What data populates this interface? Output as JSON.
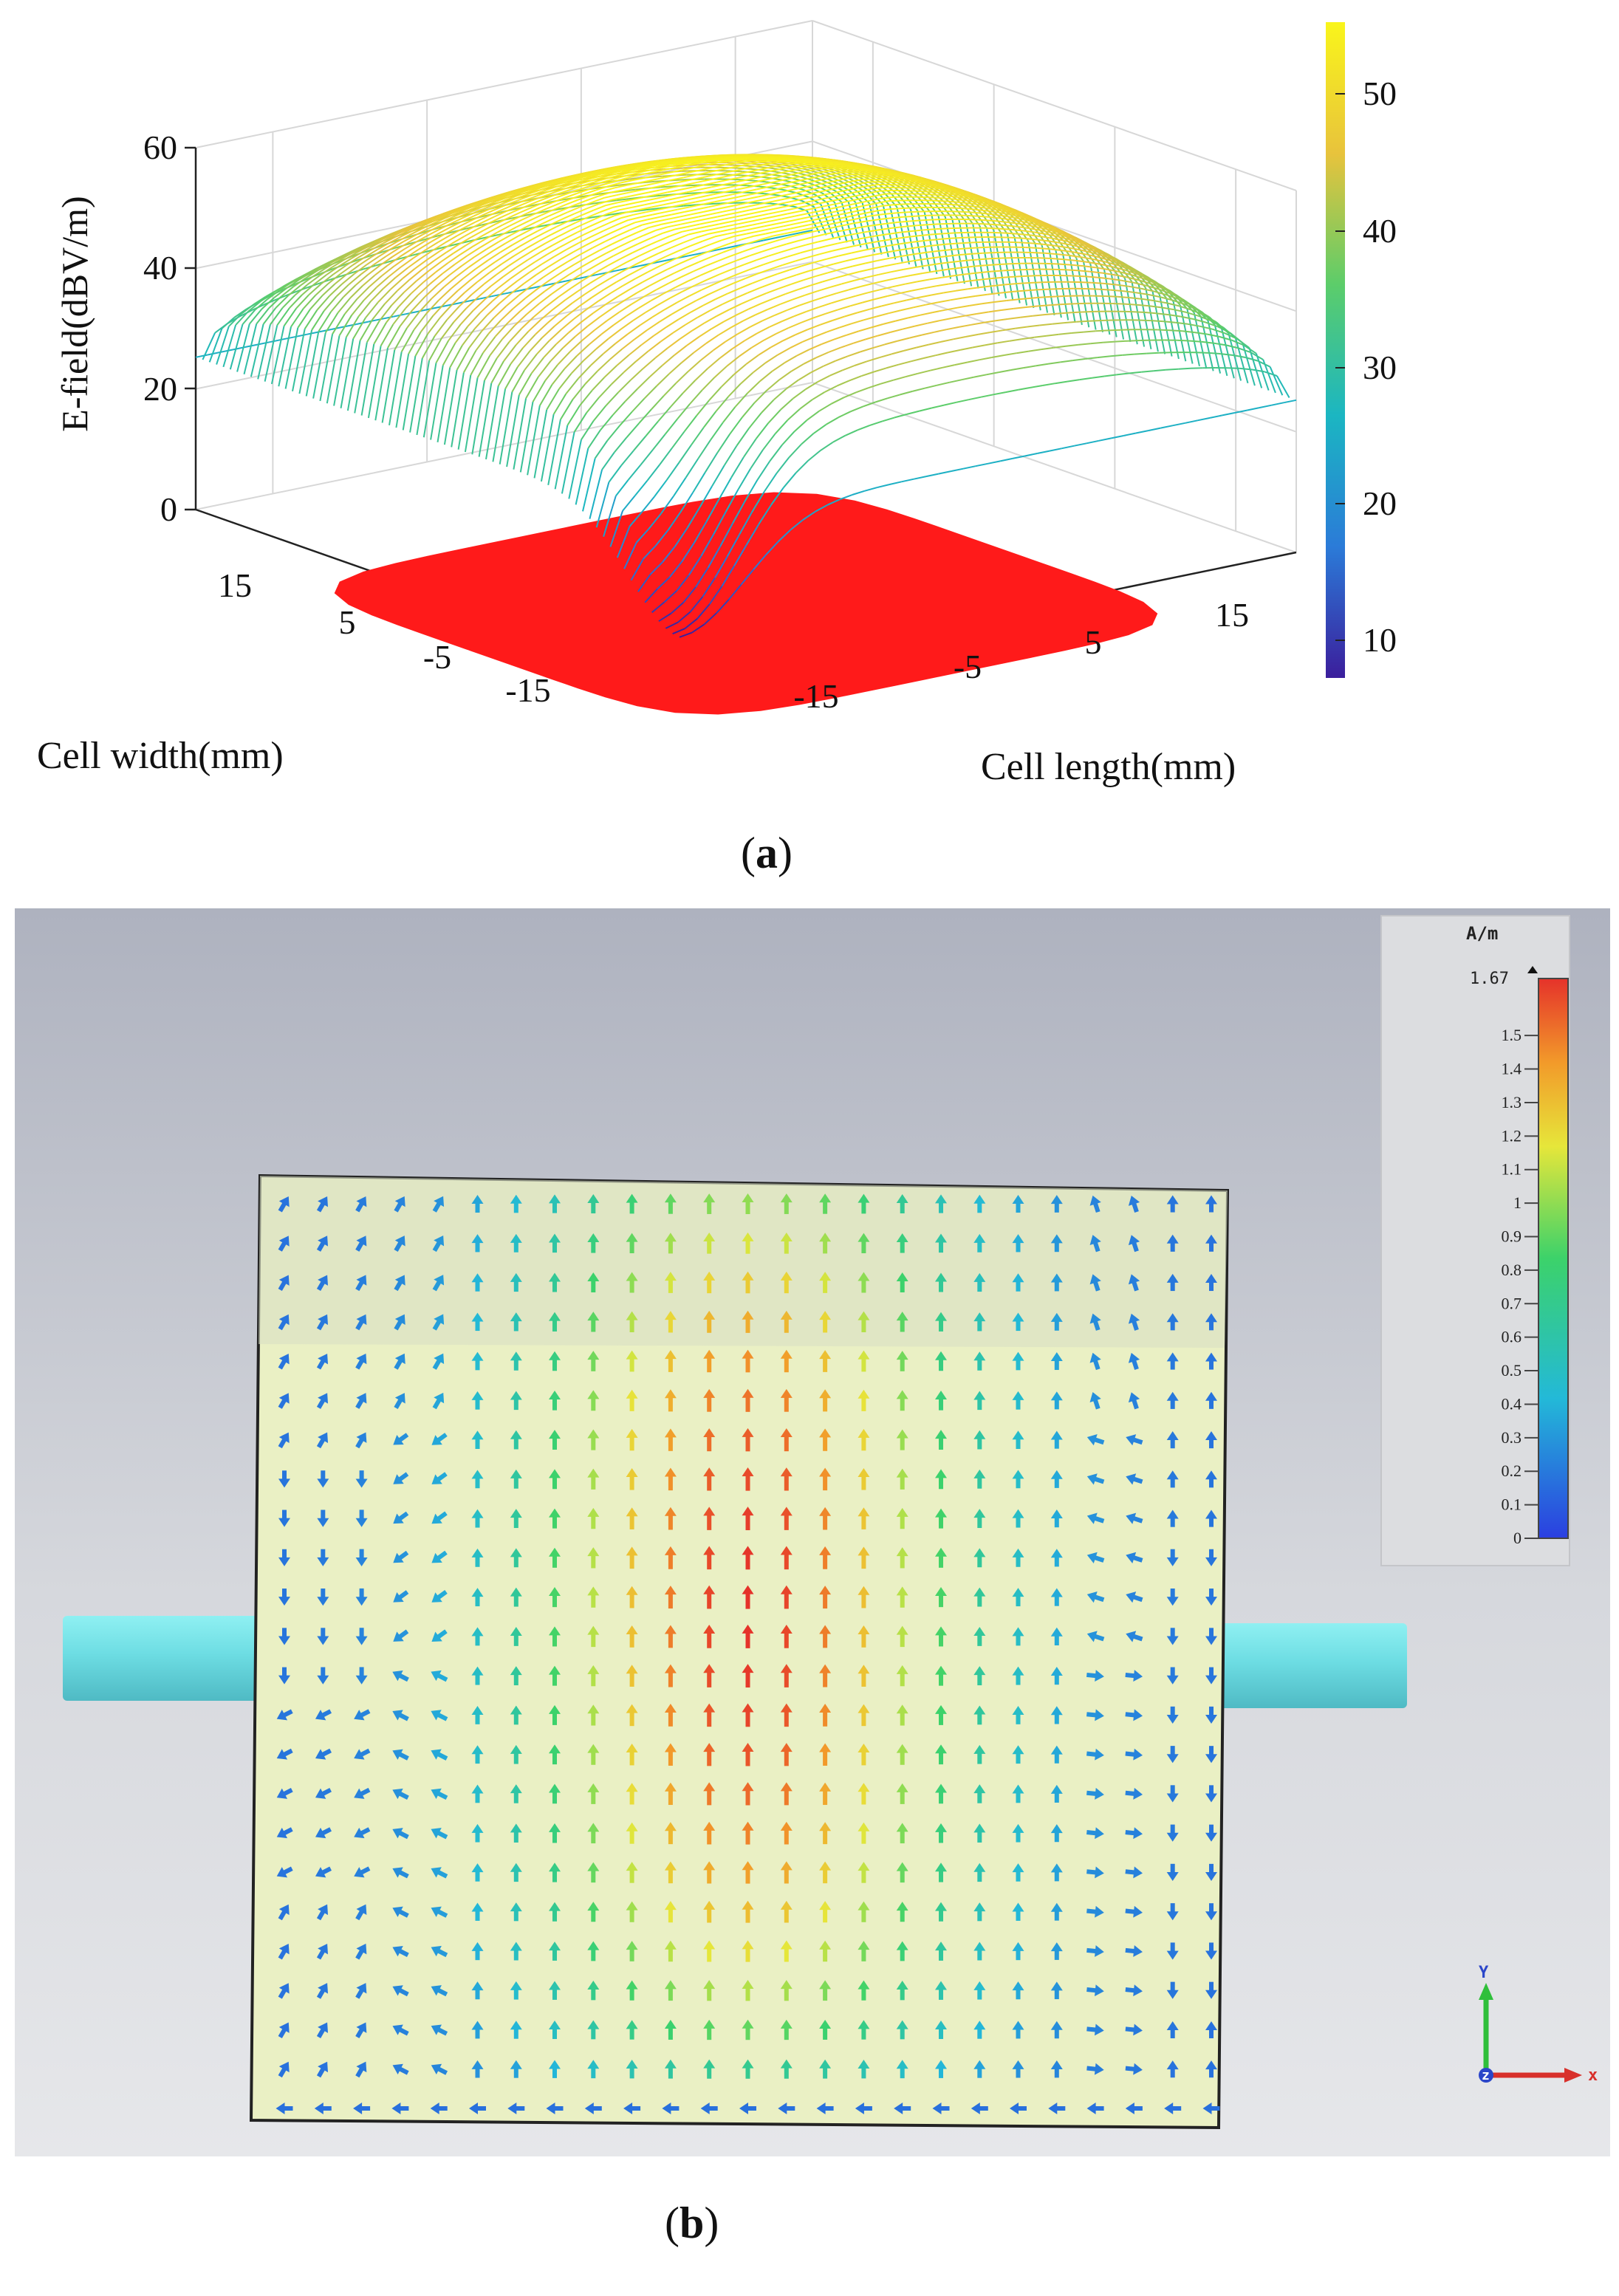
{
  "chart_data": [
    {
      "type": "surface3d",
      "panel_label": "a",
      "zlabel": "E-field(dBV/m)",
      "xlabel": "Cell width(mm)",
      "ylabel": "Cell length(mm)",
      "z_ticks": [
        "0",
        "20",
        "40",
        "60"
      ],
      "x_ticks": [
        "15",
        "5",
        "-5",
        "-15"
      ],
      "y_ticks": [
        "-15",
        "-5",
        "5",
        "15"
      ],
      "zlim": [
        0,
        60
      ],
      "xlim": [
        -20,
        20
      ],
      "ylim": [
        -20,
        20
      ],
      "colorbar": {
        "ticks": [
          "50",
          "40",
          "30",
          "20",
          "10"
        ],
        "range": [
          7,
          55
        ]
      },
      "surface": {
        "peak": 55,
        "corner_min": 20,
        "dip_min": 7,
        "dip_location": {
          "width": -20,
          "length": -20
        }
      },
      "projection_color": "#ff1a1a",
      "grid": true
    },
    {
      "type": "vector_field",
      "panel_label": "b",
      "unit": "A/m",
      "colorbar": {
        "max_label": "1.67",
        "ticks": [
          "1.5",
          "1.4",
          "1.3",
          "1.2",
          "1.1",
          "1",
          "0.9",
          "0.8",
          "0.7",
          "0.6",
          "0.5",
          "0.4",
          "0.3",
          "0.2",
          "0.1",
          "0"
        ],
        "range": [
          0,
          1.67
        ]
      },
      "axes": {
        "y": "Y",
        "x": "x",
        "z": "z"
      },
      "field": {
        "center_max": 1.67,
        "edge_min": 0.1,
        "dominant_direction": "+y in center, -y along left side, circulating near ports"
      }
    }
  ]
}
